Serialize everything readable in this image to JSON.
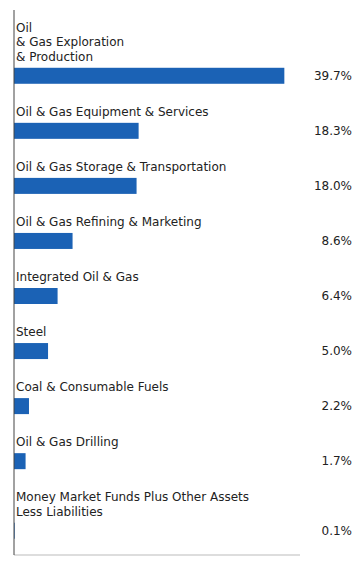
{
  "chart_data": {
    "type": "bar",
    "orientation": "horizontal",
    "categories": [
      "Oil\n& Gas Exploration\n& Production",
      "Oil & Gas Equipment & Services",
      "Oil & Gas Storage & Transportation",
      "Oil & Gas Refining & Marketing",
      "Integrated Oil & Gas",
      "Steel",
      "Coal & Consumable Fuels",
      "Oil & Gas Drilling",
      "Money Market Funds Plus Other Assets\nLess Liabilities"
    ],
    "values": [
      39.7,
      18.3,
      18.0,
      8.6,
      6.4,
      5.0,
      2.2,
      1.7,
      0.1
    ],
    "value_labels": [
      "39.7%",
      "18.3%",
      "18.0%",
      "8.6%",
      "6.4%",
      "5.0%",
      "2.2%",
      "1.7%",
      "0.1%"
    ],
    "color": "#1B62B5",
    "xlim": [
      0,
      42
    ],
    "data_labels": true,
    "tick_labels": false
  }
}
